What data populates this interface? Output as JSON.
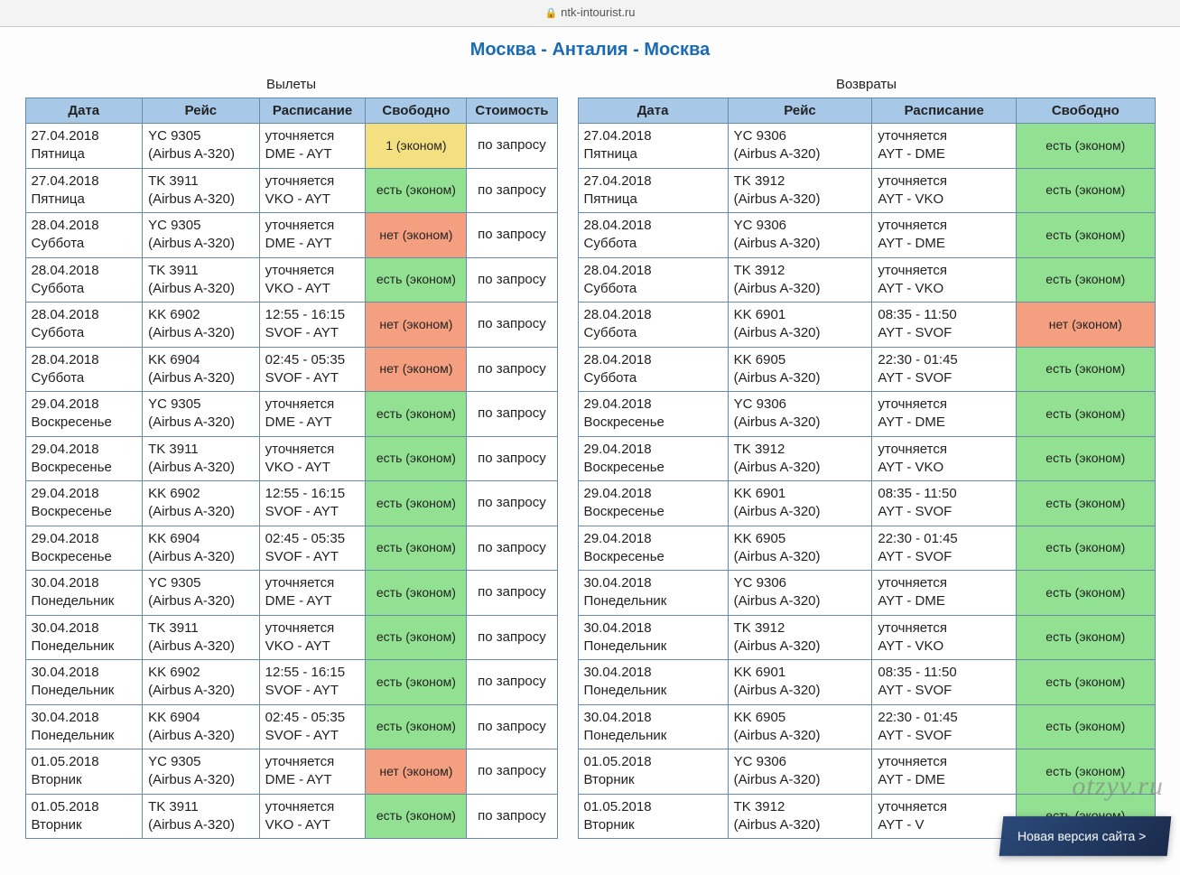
{
  "url_bar": {
    "host": "ntk-intourist.ru"
  },
  "page_title": "Москва - Анталия - Москва",
  "watermark_text": "otzyv.ru",
  "new_version_label": "Новая версия сайта >",
  "availability_colors": {
    "yes": "#92e092",
    "no": "#f4a080",
    "one": "#f4e080"
  },
  "header_bg": "#a8c8e8",
  "border_color": "#6a8aaa",
  "title_color": "#1a6bb3",
  "departure": {
    "section_title": "Вылеты",
    "columns": [
      "Дата",
      "Рейс",
      "Расписание",
      "Свободно",
      "Стоимость"
    ],
    "col_widths": [
      "22%",
      "22%",
      "20%",
      "19%",
      "17%"
    ],
    "rows": [
      {
        "date": "27.04.2018",
        "day": "Пятница",
        "flight": "YC 9305",
        "aircraft": "(Airbus A-320)",
        "sched1": "уточняется",
        "sched2": "DME - AYT",
        "avail": "1 (эконом)",
        "avail_kind": "one",
        "cost": "по запросу"
      },
      {
        "date": "27.04.2018",
        "day": "Пятница",
        "flight": "TK 3911",
        "aircraft": "(Airbus A-320)",
        "sched1": "уточняется",
        "sched2": "VKO - AYT",
        "avail": "есть (эконом)",
        "avail_kind": "yes",
        "cost": "по запросу"
      },
      {
        "date": "28.04.2018",
        "day": "Суббота",
        "flight": "YC 9305",
        "aircraft": "(Airbus A-320)",
        "sched1": "уточняется",
        "sched2": "DME - AYT",
        "avail": "нет (эконом)",
        "avail_kind": "no",
        "cost": "по запросу"
      },
      {
        "date": "28.04.2018",
        "day": "Суббота",
        "flight": "TK 3911",
        "aircraft": "(Airbus A-320)",
        "sched1": "уточняется",
        "sched2": "VKO - AYT",
        "avail": "есть (эконом)",
        "avail_kind": "yes",
        "cost": "по запросу"
      },
      {
        "date": "28.04.2018",
        "day": "Суббота",
        "flight": "KK 6902",
        "aircraft": "(Airbus A-320)",
        "sched1": "12:55 - 16:15",
        "sched2": "SVOF - AYT",
        "avail": "нет (эконом)",
        "avail_kind": "no",
        "cost": "по запросу"
      },
      {
        "date": "28.04.2018",
        "day": "Суббота",
        "flight": "KK 6904",
        "aircraft": "(Airbus A-320)",
        "sched1": "02:45 - 05:35",
        "sched2": "SVOF - AYT",
        "avail": "нет (эконом)",
        "avail_kind": "no",
        "cost": "по запросу"
      },
      {
        "date": "29.04.2018",
        "day": "Воскресенье",
        "flight": "YC 9305",
        "aircraft": "(Airbus A-320)",
        "sched1": "уточняется",
        "sched2": "DME - AYT",
        "avail": "есть (эконом)",
        "avail_kind": "yes",
        "cost": "по запросу"
      },
      {
        "date": "29.04.2018",
        "day": "Воскресенье",
        "flight": "TK 3911",
        "aircraft": "(Airbus A-320)",
        "sched1": "уточняется",
        "sched2": "VKO - AYT",
        "avail": "есть (эконом)",
        "avail_kind": "yes",
        "cost": "по запросу"
      },
      {
        "date": "29.04.2018",
        "day": "Воскресенье",
        "flight": "KK 6902",
        "aircraft": "(Airbus A-320)",
        "sched1": "12:55 - 16:15",
        "sched2": "SVOF - AYT",
        "avail": "есть (эконом)",
        "avail_kind": "yes",
        "cost": "по запросу"
      },
      {
        "date": "29.04.2018",
        "day": "Воскресенье",
        "flight": "KK 6904",
        "aircraft": "(Airbus A-320)",
        "sched1": "02:45 - 05:35",
        "sched2": "SVOF - AYT",
        "avail": "есть (эконом)",
        "avail_kind": "yes",
        "cost": "по запросу"
      },
      {
        "date": "30.04.2018",
        "day": "Понедельник",
        "flight": "YC 9305",
        "aircraft": "(Airbus A-320)",
        "sched1": "уточняется",
        "sched2": "DME - AYT",
        "avail": "есть (эконом)",
        "avail_kind": "yes",
        "cost": "по запросу"
      },
      {
        "date": "30.04.2018",
        "day": "Понедельник",
        "flight": "TK 3911",
        "aircraft": "(Airbus A-320)",
        "sched1": "уточняется",
        "sched2": "VKO - AYT",
        "avail": "есть (эконом)",
        "avail_kind": "yes",
        "cost": "по запросу"
      },
      {
        "date": "30.04.2018",
        "day": "Понедельник",
        "flight": "KK 6902",
        "aircraft": "(Airbus A-320)",
        "sched1": "12:55 - 16:15",
        "sched2": "SVOF - AYT",
        "avail": "есть (эконом)",
        "avail_kind": "yes",
        "cost": "по запросу"
      },
      {
        "date": "30.04.2018",
        "day": "Понедельник",
        "flight": "KK 6904",
        "aircraft": "(Airbus A-320)",
        "sched1": "02:45 - 05:35",
        "sched2": "SVOF - AYT",
        "avail": "есть (эконом)",
        "avail_kind": "yes",
        "cost": "по запросу"
      },
      {
        "date": "01.05.2018",
        "day": "Вторник",
        "flight": "YC 9305",
        "aircraft": "(Airbus A-320)",
        "sched1": "уточняется",
        "sched2": "DME - AYT",
        "avail": "нет (эконом)",
        "avail_kind": "no",
        "cost": "по запросу"
      },
      {
        "date": "01.05.2018",
        "day": "Вторник",
        "flight": "TK 3911",
        "aircraft": "(Airbus A-320)",
        "sched1": "уточняется",
        "sched2": "VKO - AYT",
        "avail": "есть (эконом)",
        "avail_kind": "yes",
        "cost": "по запросу"
      }
    ]
  },
  "return": {
    "section_title": "Возвраты",
    "columns": [
      "Дата",
      "Рейс",
      "Расписание",
      "Свободно"
    ],
    "col_widths": [
      "26%",
      "25%",
      "25%",
      "24%"
    ],
    "rows": [
      {
        "date": "27.04.2018",
        "day": "Пятница",
        "flight": "YC 9306",
        "aircraft": "(Airbus A-320)",
        "sched1": "уточняется",
        "sched2": "AYT - DME",
        "avail": "есть (эконом)",
        "avail_kind": "yes"
      },
      {
        "date": "27.04.2018",
        "day": "Пятница",
        "flight": "TK 3912",
        "aircraft": "(Airbus A-320)",
        "sched1": "уточняется",
        "sched2": "AYT - VKO",
        "avail": "есть (эконом)",
        "avail_kind": "yes"
      },
      {
        "date": "28.04.2018",
        "day": "Суббота",
        "flight": "YC 9306",
        "aircraft": "(Airbus A-320)",
        "sched1": "уточняется",
        "sched2": "AYT - DME",
        "avail": "есть (эконом)",
        "avail_kind": "yes"
      },
      {
        "date": "28.04.2018",
        "day": "Суббота",
        "flight": "TK 3912",
        "aircraft": "(Airbus A-320)",
        "sched1": "уточняется",
        "sched2": "AYT - VKO",
        "avail": "есть (эконом)",
        "avail_kind": "yes"
      },
      {
        "date": "28.04.2018",
        "day": "Суббота",
        "flight": "KK 6901",
        "aircraft": "(Airbus A-320)",
        "sched1": "08:35 - 11:50",
        "sched2": "AYT - SVOF",
        "avail": "нет (эконом)",
        "avail_kind": "no"
      },
      {
        "date": "28.04.2018",
        "day": "Суббота",
        "flight": "KK 6905",
        "aircraft": "(Airbus A-320)",
        "sched1": "22:30 - 01:45",
        "sched2": "AYT - SVOF",
        "avail": "есть (эконом)",
        "avail_kind": "yes"
      },
      {
        "date": "29.04.2018",
        "day": "Воскресенье",
        "flight": "YC 9306",
        "aircraft": "(Airbus A-320)",
        "sched1": "уточняется",
        "sched2": "AYT - DME",
        "avail": "есть (эконом)",
        "avail_kind": "yes"
      },
      {
        "date": "29.04.2018",
        "day": "Воскресенье",
        "flight": "TK 3912",
        "aircraft": "(Airbus A-320)",
        "sched1": "уточняется",
        "sched2": "AYT - VKO",
        "avail": "есть (эконом)",
        "avail_kind": "yes"
      },
      {
        "date": "29.04.2018",
        "day": "Воскресенье",
        "flight": "KK 6901",
        "aircraft": "(Airbus A-320)",
        "sched1": "08:35 - 11:50",
        "sched2": "AYT - SVOF",
        "avail": "есть (эконом)",
        "avail_kind": "yes"
      },
      {
        "date": "29.04.2018",
        "day": "Воскресенье",
        "flight": "KK 6905",
        "aircraft": "(Airbus A-320)",
        "sched1": "22:30 - 01:45",
        "sched2": "AYT - SVOF",
        "avail": "есть (эконом)",
        "avail_kind": "yes"
      },
      {
        "date": "30.04.2018",
        "day": "Понедельник",
        "flight": "YC 9306",
        "aircraft": "(Airbus A-320)",
        "sched1": "уточняется",
        "sched2": "AYT - DME",
        "avail": "есть (эконом)",
        "avail_kind": "yes"
      },
      {
        "date": "30.04.2018",
        "day": "Понедельник",
        "flight": "TK 3912",
        "aircraft": "(Airbus A-320)",
        "sched1": "уточняется",
        "sched2": "AYT - VKO",
        "avail": "есть (эконом)",
        "avail_kind": "yes"
      },
      {
        "date": "30.04.2018",
        "day": "Понедельник",
        "flight": "KK 6901",
        "aircraft": "(Airbus A-320)",
        "sched1": "08:35 - 11:50",
        "sched2": "AYT - SVOF",
        "avail": "есть (эконом)",
        "avail_kind": "yes"
      },
      {
        "date": "30.04.2018",
        "day": "Понедельник",
        "flight": "KK 6905",
        "aircraft": "(Airbus A-320)",
        "sched1": "22:30 - 01:45",
        "sched2": "AYT - SVOF",
        "avail": "есть (эконом)",
        "avail_kind": "yes"
      },
      {
        "date": "01.05.2018",
        "day": "Вторник",
        "flight": "YC 9306",
        "aircraft": "(Airbus A-320)",
        "sched1": "уточняется",
        "sched2": "AYT - DME",
        "avail": "есть (эконом)",
        "avail_kind": "yes"
      },
      {
        "date": "01.05.2018",
        "day": "Вторник",
        "flight": "TK 3912",
        "aircraft": "(Airbus A-320)",
        "sched1": "уточняется",
        "sched2": "AYT - V",
        "avail": "есть (эконом)",
        "avail_kind": "yes"
      }
    ]
  }
}
